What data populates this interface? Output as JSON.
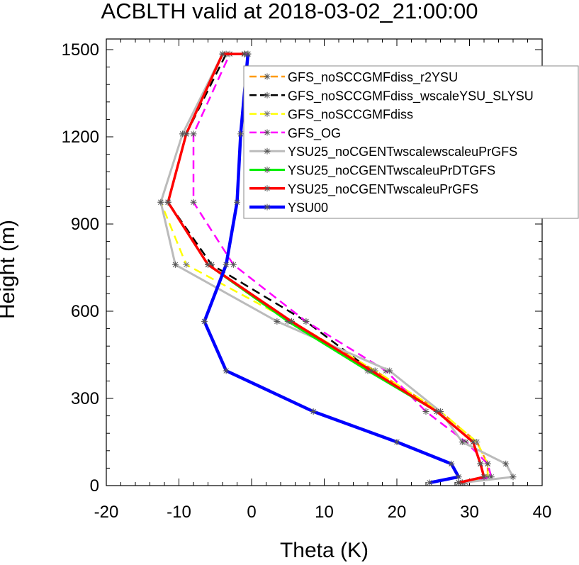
{
  "chart_data": {
    "type": "line",
    "title": "ACBLTH valid at 2018-03-02_21:00:00",
    "xlabel": "Theta (K)",
    "ylabel": "Height (m)",
    "xlim": [
      -20,
      40
    ],
    "ylim": [
      0,
      1500
    ],
    "xticks": [
      -20,
      -10,
      0,
      10,
      20,
      30,
      40
    ],
    "yticks": [
      0,
      300,
      600,
      900,
      1200,
      1500
    ],
    "xtick_labels": [
      "-20",
      "-10",
      "0",
      "10",
      "20",
      "30",
      "40"
    ],
    "ytick_labels": [
      "0",
      "300",
      "600",
      "900",
      "1200",
      "1500"
    ],
    "legend_position": "top-right",
    "series": [
      {
        "name": "GFS_noSCCGMFdiss_r2YSU",
        "color": "#ff9900",
        "dash": "dash",
        "width": 2.5,
        "x": [
          29.0,
          32.5,
          32.5,
          31.0,
          26.0,
          17.0,
          5.5,
          -6.0,
          -11.5,
          -9.0,
          -4.0,
          -1.0
        ],
        "y": [
          10,
          30,
          75,
          150,
          255,
          395,
          565,
          760,
          975,
          1210,
          1485,
          1485
        ]
      },
      {
        "name": "GFS_noSCCGMFdiss_wscaleYSU_SLYSU",
        "color": "#000000",
        "dash": "dash",
        "width": 2.5,
        "x": [
          28.5,
          32.0,
          31.5,
          30.5,
          25.5,
          16.5,
          7.5,
          -5.5,
          -11.5,
          -9.0,
          -3.5,
          -1.0
        ],
        "y": [
          10,
          30,
          75,
          150,
          255,
          395,
          565,
          760,
          975,
          1210,
          1485,
          1485
        ]
      },
      {
        "name": "GFS_noSCCGMFdiss",
        "color": "#ffff00",
        "dash": "dash",
        "width": 2.5,
        "x": [
          28.5,
          32.5,
          32.5,
          31.0,
          26.0,
          17.0,
          5.5,
          -9.0,
          -12.5,
          -9.5,
          -4.0,
          -1.0
        ],
        "y": [
          10,
          30,
          75,
          150,
          255,
          395,
          565,
          760,
          975,
          1210,
          1485,
          1485
        ]
      },
      {
        "name": "GFS_OG",
        "color": "#ff00ff",
        "dash": "dash",
        "width": 2.5,
        "x": [
          29.5,
          33.0,
          32.5,
          29.5,
          24.0,
          18.5,
          7.5,
          -2.5,
          -8.0,
          -8.0,
          -3.0,
          -0.5
        ],
        "y": [
          10,
          30,
          75,
          150,
          255,
          395,
          565,
          760,
          975,
          1210,
          1485,
          1485
        ]
      },
      {
        "name": "YSU25_noCGENTwscalewscaleuPrGFS",
        "color": "#bbbbbb",
        "dash": "solid",
        "width": 3,
        "x": [
          29.0,
          36.0,
          35.0,
          29.0,
          26.0,
          19.0,
          3.5,
          -10.5,
          -12.5,
          -9.5,
          -4.0,
          -1.0
        ],
        "y": [
          10,
          30,
          75,
          150,
          255,
          395,
          565,
          760,
          975,
          1210,
          1485,
          1485
        ]
      },
      {
        "name": "YSU25_noCGENTwscaleuPrDTGFS",
        "color": "#00ee00",
        "dash": "solid",
        "width": 3,
        "x": [
          28.5,
          32.0,
          31.5,
          30.5,
          25.5,
          16.0,
          5.0,
          -6.0,
          -11.5,
          -9.0,
          -4.0,
          -1.0
        ],
        "y": [
          10,
          30,
          75,
          150,
          255,
          395,
          565,
          760,
          975,
          1210,
          1485,
          1485
        ]
      },
      {
        "name": "YSU25_noCGENTwscaleuPrGFS",
        "color": "#ff0000",
        "dash": "solid",
        "width": 3.5,
        "x": [
          28.5,
          32.0,
          31.5,
          30.5,
          25.5,
          16.5,
          5.5,
          -6.0,
          -11.5,
          -9.0,
          -4.0,
          -1.0
        ],
        "y": [
          10,
          30,
          75,
          150,
          255,
          395,
          565,
          760,
          975,
          1210,
          1485,
          1485
        ]
      },
      {
        "name": "YSU00",
        "color": "#0000ff",
        "dash": "solid",
        "width": 4.5,
        "x": [
          24.5,
          28.5,
          27.5,
          20.0,
          8.5,
          -3.5,
          -6.5,
          -3.5,
          -2.0,
          -1.5,
          -0.5,
          -0.5
        ],
        "y": [
          10,
          30,
          75,
          150,
          255,
          395,
          565,
          760,
          975,
          1210,
          1485,
          1485
        ]
      }
    ]
  }
}
